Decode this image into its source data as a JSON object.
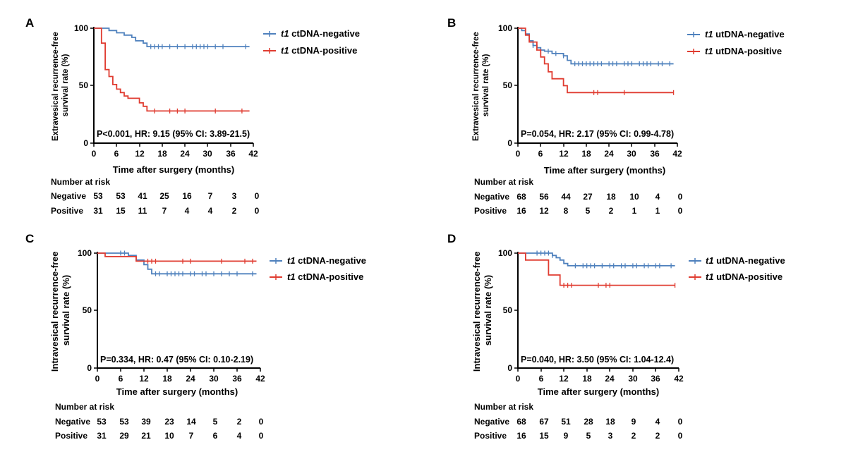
{
  "colors": {
    "negative": "#4f81bd",
    "positive": "#e03c31",
    "axis": "#000000"
  },
  "chart_data": [
    {
      "type": "line",
      "subtype": "kaplan-meier",
      "panel_label": "A",
      "ylabel": [
        "Extravesical recurrence-free",
        "survival rate (%)"
      ],
      "xlabel": "Time after surgery (months)",
      "xlim": [
        0,
        42
      ],
      "ylim": [
        0,
        100
      ],
      "xticks": [
        "0",
        "6",
        "12",
        "18",
        "24",
        "30",
        "36",
        "42"
      ],
      "yticks": [
        "0",
        "50",
        "100"
      ],
      "stats": "P<0.001, HR: 9.15 (95% CI: 3.89-21.5)",
      "legend": [
        {
          "prefix": "t1",
          "label": " ctDNA-negative"
        },
        {
          "prefix": "t1",
          "label": " ctDNA-positive"
        }
      ],
      "series": [
        {
          "name": "t1 ctDNA-negative",
          "color": "#4f81bd",
          "steps": [
            [
              0,
              100
            ],
            [
              4,
              98
            ],
            [
              6,
              96
            ],
            [
              8,
              94
            ],
            [
              10,
              92
            ],
            [
              11,
              89
            ],
            [
              13,
              87
            ],
            [
              14,
              84
            ],
            [
              41,
              84
            ]
          ],
          "censors": [
            15,
            16,
            17,
            18,
            20,
            22,
            24,
            26,
            27,
            28,
            29,
            30,
            32,
            34,
            40
          ]
        },
        {
          "name": "t1 ctDNA-positive",
          "color": "#e03c31",
          "steps": [
            [
              0,
              100
            ],
            [
              2,
              87
            ],
            [
              3,
              64
            ],
            [
              4,
              58
            ],
            [
              5,
              51
            ],
            [
              6,
              47
            ],
            [
              7,
              44
            ],
            [
              8,
              41
            ],
            [
              9,
              39
            ],
            [
              12,
              35
            ],
            [
              13,
              32
            ],
            [
              14,
              28
            ],
            [
              41,
              28
            ]
          ],
          "censors": [
            16,
            20,
            22,
            24,
            32,
            39
          ]
        }
      ],
      "risk_table": {
        "title": "Number at risk",
        "rows": [
          {
            "label": "Negative",
            "values": [
              "53",
              "53",
              "41",
              "25",
              "16",
              "7",
              "3",
              "0"
            ]
          },
          {
            "label": "Positive",
            "values": [
              "31",
              "15",
              "11",
              "7",
              "4",
              "4",
              "2",
              "0"
            ]
          }
        ]
      }
    },
    {
      "type": "line",
      "subtype": "kaplan-meier",
      "panel_label": "B",
      "ylabel": [
        "Extravesical recurrence-free",
        "survival rate (%)"
      ],
      "xlabel": "Time after surgery (months)",
      "xlim": [
        0,
        42
      ],
      "ylim": [
        0,
        100
      ],
      "xticks": [
        "0",
        "6",
        "12",
        "18",
        "24",
        "30",
        "36",
        "42"
      ],
      "yticks": [
        "0",
        "50",
        "100"
      ],
      "stats": "P=0.054, HR: 2.17 (95% CI: 0.99-4.78)",
      "legend": [
        {
          "prefix": "t1",
          "label": " utDNA-negative"
        },
        {
          "prefix": "t1",
          "label": " utDNA-positive"
        }
      ],
      "series": [
        {
          "name": "t1 utDNA-negative",
          "color": "#4f81bd",
          "steps": [
            [
              0,
              100
            ],
            [
              1,
              98
            ],
            [
              2,
              95
            ],
            [
              3,
              89
            ],
            [
              4,
              85
            ],
            [
              5,
              83
            ],
            [
              6,
              81
            ],
            [
              7,
              80
            ],
            [
              9,
              78
            ],
            [
              12,
              76
            ],
            [
              13,
              72
            ],
            [
              14,
              69
            ],
            [
              41,
              69
            ]
          ],
          "censors": [
            4,
            6,
            8,
            10,
            12,
            15,
            16,
            17,
            18,
            19,
            20,
            21,
            22,
            24,
            25,
            26,
            28,
            29,
            30,
            32,
            33,
            34,
            35,
            37,
            38,
            40
          ]
        },
        {
          "name": "t1 utDNA-positive",
          "color": "#e03c31",
          "steps": [
            [
              0,
              100
            ],
            [
              2,
              94
            ],
            [
              3,
              88
            ],
            [
              5,
              81
            ],
            [
              6,
              75
            ],
            [
              7,
              69
            ],
            [
              8,
              62
            ],
            [
              9,
              56
            ],
            [
              12,
              50
            ],
            [
              13,
              44
            ],
            [
              41,
              44
            ]
          ],
          "censors": [
            20,
            21,
            28,
            41
          ]
        }
      ],
      "risk_table": {
        "title": "Number at risk",
        "rows": [
          {
            "label": "Negative",
            "values": [
              "68",
              "56",
              "44",
              "27",
              "18",
              "10",
              "4",
              "0"
            ]
          },
          {
            "label": "Positive",
            "values": [
              "16",
              "12",
              "8",
              "5",
              "2",
              "1",
              "1",
              "0"
            ]
          }
        ]
      }
    },
    {
      "type": "line",
      "subtype": "kaplan-meier",
      "panel_label": "C",
      "ylabel": [
        "Intravesical recurrence-free",
        "survival rate (%)"
      ],
      "xlabel": "Time after surgery (months)",
      "xlim": [
        0,
        42
      ],
      "ylim": [
        0,
        100
      ],
      "xticks": [
        "0",
        "6",
        "12",
        "18",
        "24",
        "30",
        "36",
        "42"
      ],
      "yticks": [
        "0",
        "50",
        "100"
      ],
      "stats": "P=0.334, HR: 0.47 (95% CI: 0.10-2.19)",
      "legend": [
        {
          "prefix": "t1",
          "label": " ctDNA-negative"
        },
        {
          "prefix": "t1",
          "label": " ctDNA-positive"
        }
      ],
      "series": [
        {
          "name": "t1 ctDNA-negative",
          "color": "#4f81bd",
          "steps": [
            [
              0,
              100
            ],
            [
              8,
              98
            ],
            [
              10,
              94
            ],
            [
              12,
              90
            ],
            [
              13,
              86
            ],
            [
              14,
              82
            ],
            [
              41,
              82
            ]
          ],
          "censors": [
            6,
            7,
            15,
            16,
            18,
            19,
            20,
            21,
            22,
            24,
            25,
            27,
            28,
            30,
            32,
            34,
            36,
            40
          ]
        },
        {
          "name": "t1 ctDNA-positive",
          "color": "#e03c31",
          "steps": [
            [
              0,
              100
            ],
            [
              2,
              97
            ],
            [
              10,
              93
            ],
            [
              41,
              93
            ]
          ],
          "censors": [
            13,
            14,
            15,
            22,
            24,
            32,
            38,
            40
          ]
        }
      ],
      "risk_table": {
        "title": "Number at risk",
        "rows": [
          {
            "label": "Negative",
            "values": [
              "53",
              "53",
              "39",
              "23",
              "14",
              "5",
              "2",
              "0"
            ]
          },
          {
            "label": "Positive",
            "values": [
              "31",
              "29",
              "21",
              "10",
              "7",
              "6",
              "4",
              "0"
            ]
          }
        ]
      }
    },
    {
      "type": "line",
      "subtype": "kaplan-meier",
      "panel_label": "D",
      "ylabel": [
        "Intravesical recurrence-free",
        "survival rate (%)"
      ],
      "xlabel": "Time after surgery (months)",
      "xlim": [
        0,
        42
      ],
      "ylim": [
        0,
        100
      ],
      "xticks": [
        "0",
        "6",
        "12",
        "18",
        "24",
        "30",
        "36",
        "42"
      ],
      "yticks": [
        "0",
        "50",
        "100"
      ],
      "stats": "P=0.040, HR: 3.50 (95% CI: 1.04-12.4)",
      "legend": [
        {
          "prefix": "t1",
          "label": " utDNA-negative"
        },
        {
          "prefix": "t1",
          "label": " utDNA-positive"
        }
      ],
      "series": [
        {
          "name": "t1 utDNA-negative",
          "color": "#4f81bd",
          "steps": [
            [
              0,
              100
            ],
            [
              9,
              98
            ],
            [
              10,
              96
            ],
            [
              11,
              94
            ],
            [
              12,
              91
            ],
            [
              13,
              89
            ],
            [
              41,
              89
            ]
          ],
          "censors": [
            5,
            6,
            7,
            8,
            9,
            15,
            17,
            18,
            19,
            20,
            22,
            24,
            25,
            27,
            28,
            30,
            31,
            33,
            34,
            36,
            37,
            40
          ]
        },
        {
          "name": "t1 utDNA-positive",
          "color": "#e03c31",
          "steps": [
            [
              0,
              100
            ],
            [
              2,
              94
            ],
            [
              8,
              81
            ],
            [
              11,
              72
            ],
            [
              41,
              72
            ]
          ],
          "censors": [
            12,
            13,
            14,
            21,
            23,
            24,
            41
          ]
        }
      ],
      "risk_table": {
        "title": "Number at risk",
        "rows": [
          {
            "label": "Negative",
            "values": [
              "68",
              "67",
              "51",
              "28",
              "18",
              "9",
              "4",
              "0"
            ]
          },
          {
            "label": "Positive",
            "values": [
              "16",
              "15",
              "9",
              "5",
              "3",
              "2",
              "2",
              "0"
            ]
          }
        ]
      }
    }
  ]
}
